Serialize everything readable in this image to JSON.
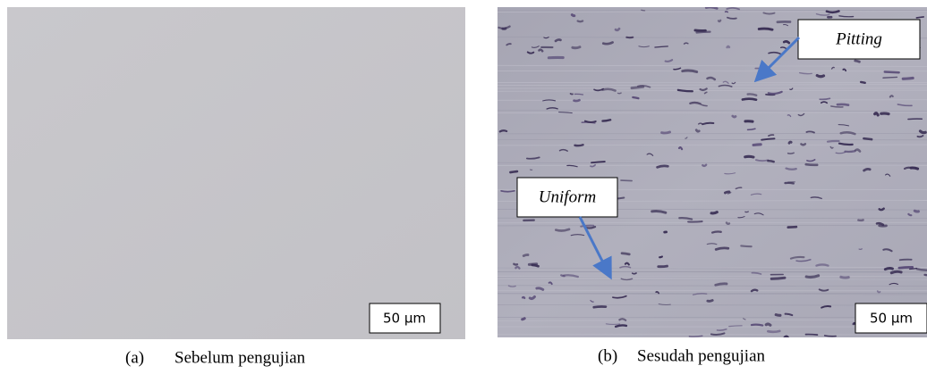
{
  "panels": [
    {
      "label": "(a)",
      "caption": "Sebelum pengujian",
      "scale_bar": "50 µm"
    },
    {
      "label": "(b)",
      "caption": "Sesudah pengujian",
      "scale_bar": "50 µm",
      "annotations": [
        "Pitting",
        "Uniform"
      ]
    }
  ]
}
